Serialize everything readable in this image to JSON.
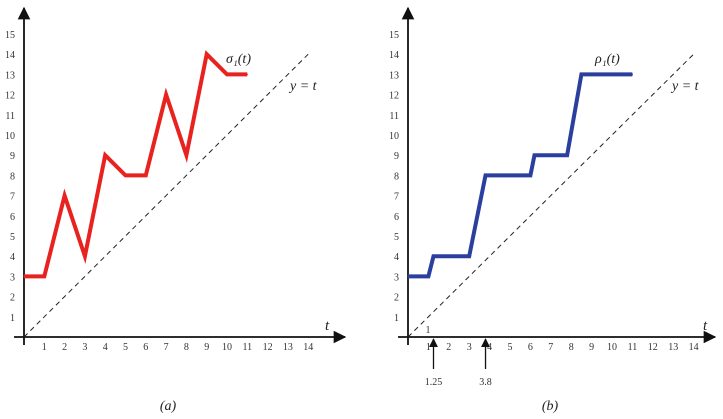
{
  "chart_data": [
    {
      "type": "line",
      "panel_caption": "(a)",
      "x_ticks": [
        "1",
        "2",
        "3",
        "4",
        "5",
        "6",
        "7",
        "8",
        "9",
        "10",
        "11",
        "12",
        "13",
        "14"
      ],
      "y_ticks": [
        "1",
        "2",
        "3",
        "4",
        "5",
        "6",
        "7",
        "8",
        "9",
        "10",
        "11",
        "12",
        "13",
        "14",
        "15"
      ],
      "xlabel": "t",
      "xlim": [
        0,
        15.5
      ],
      "ylim": [
        0,
        16
      ],
      "series": [
        {
          "name": "σ₁(t)",
          "color": "#e8231f",
          "points": [
            [
              0,
              3
            ],
            [
              1,
              3
            ],
            [
              2,
              7
            ],
            [
              3,
              4
            ],
            [
              4,
              9
            ],
            [
              5,
              8
            ],
            [
              6,
              8
            ],
            [
              7,
              12
            ],
            [
              8,
              9
            ],
            [
              9,
              14
            ],
            [
              10,
              13
            ],
            [
              11,
              13
            ]
          ]
        }
      ],
      "reference_line": {
        "label": "y = t",
        "from": [
          0,
          0
        ],
        "to": [
          14,
          14
        ],
        "style": "dashed"
      },
      "annotations": []
    },
    {
      "type": "line",
      "panel_caption": "(b)",
      "x_ticks": [
        "1",
        "2",
        "3",
        "4",
        "5",
        "6",
        "7",
        "8",
        "9",
        "10",
        "11",
        "12",
        "13",
        "14"
      ],
      "y_ticks": [
        "1",
        "2",
        "3",
        "4",
        "5",
        "6",
        "7",
        "8",
        "9",
        "10",
        "11",
        "12",
        "13",
        "14",
        "15"
      ],
      "xlabel": "t",
      "xlim": [
        0,
        15.5
      ],
      "ylim": [
        0,
        16
      ],
      "series": [
        {
          "name": "ρ₁(t)",
          "color": "#2a3f9e",
          "points": [
            [
              0,
              3
            ],
            [
              1,
              3
            ],
            [
              1.25,
              4
            ],
            [
              3,
              4
            ],
            [
              3.8,
              8
            ],
            [
              6,
              8
            ],
            [
              6.2,
              9
            ],
            [
              7.8,
              9
            ],
            [
              8.5,
              13
            ],
            [
              11,
              13
            ]
          ]
        }
      ],
      "reference_line": {
        "label": "y = t",
        "from": [
          0,
          0
        ],
        "to": [
          14,
          14
        ],
        "style": "dashed"
      },
      "annotations": [
        {
          "label": "1.25",
          "x": 1.25
        },
        {
          "label": "3.8",
          "x": 3.8
        }
      ],
      "extra_label": "1"
    }
  ]
}
